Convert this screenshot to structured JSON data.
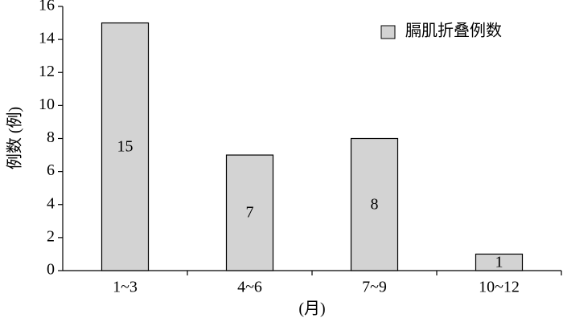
{
  "chart_data": {
    "type": "bar",
    "y_label": "例数 (例)",
    "x_label": "(月)",
    "categories": [
      "1~3",
      "4~6",
      "7~9",
      "10~12"
    ],
    "series": [
      {
        "name": "膈肌折叠例数",
        "color": "#d3d3d3",
        "values": [
          15,
          7,
          8,
          1
        ]
      }
    ],
    "ylim": [
      0,
      16
    ],
    "yticks": [
      0,
      2,
      4,
      6,
      8,
      10,
      12,
      14,
      16
    ],
    "legend": "upper right",
    "grid": false
  }
}
